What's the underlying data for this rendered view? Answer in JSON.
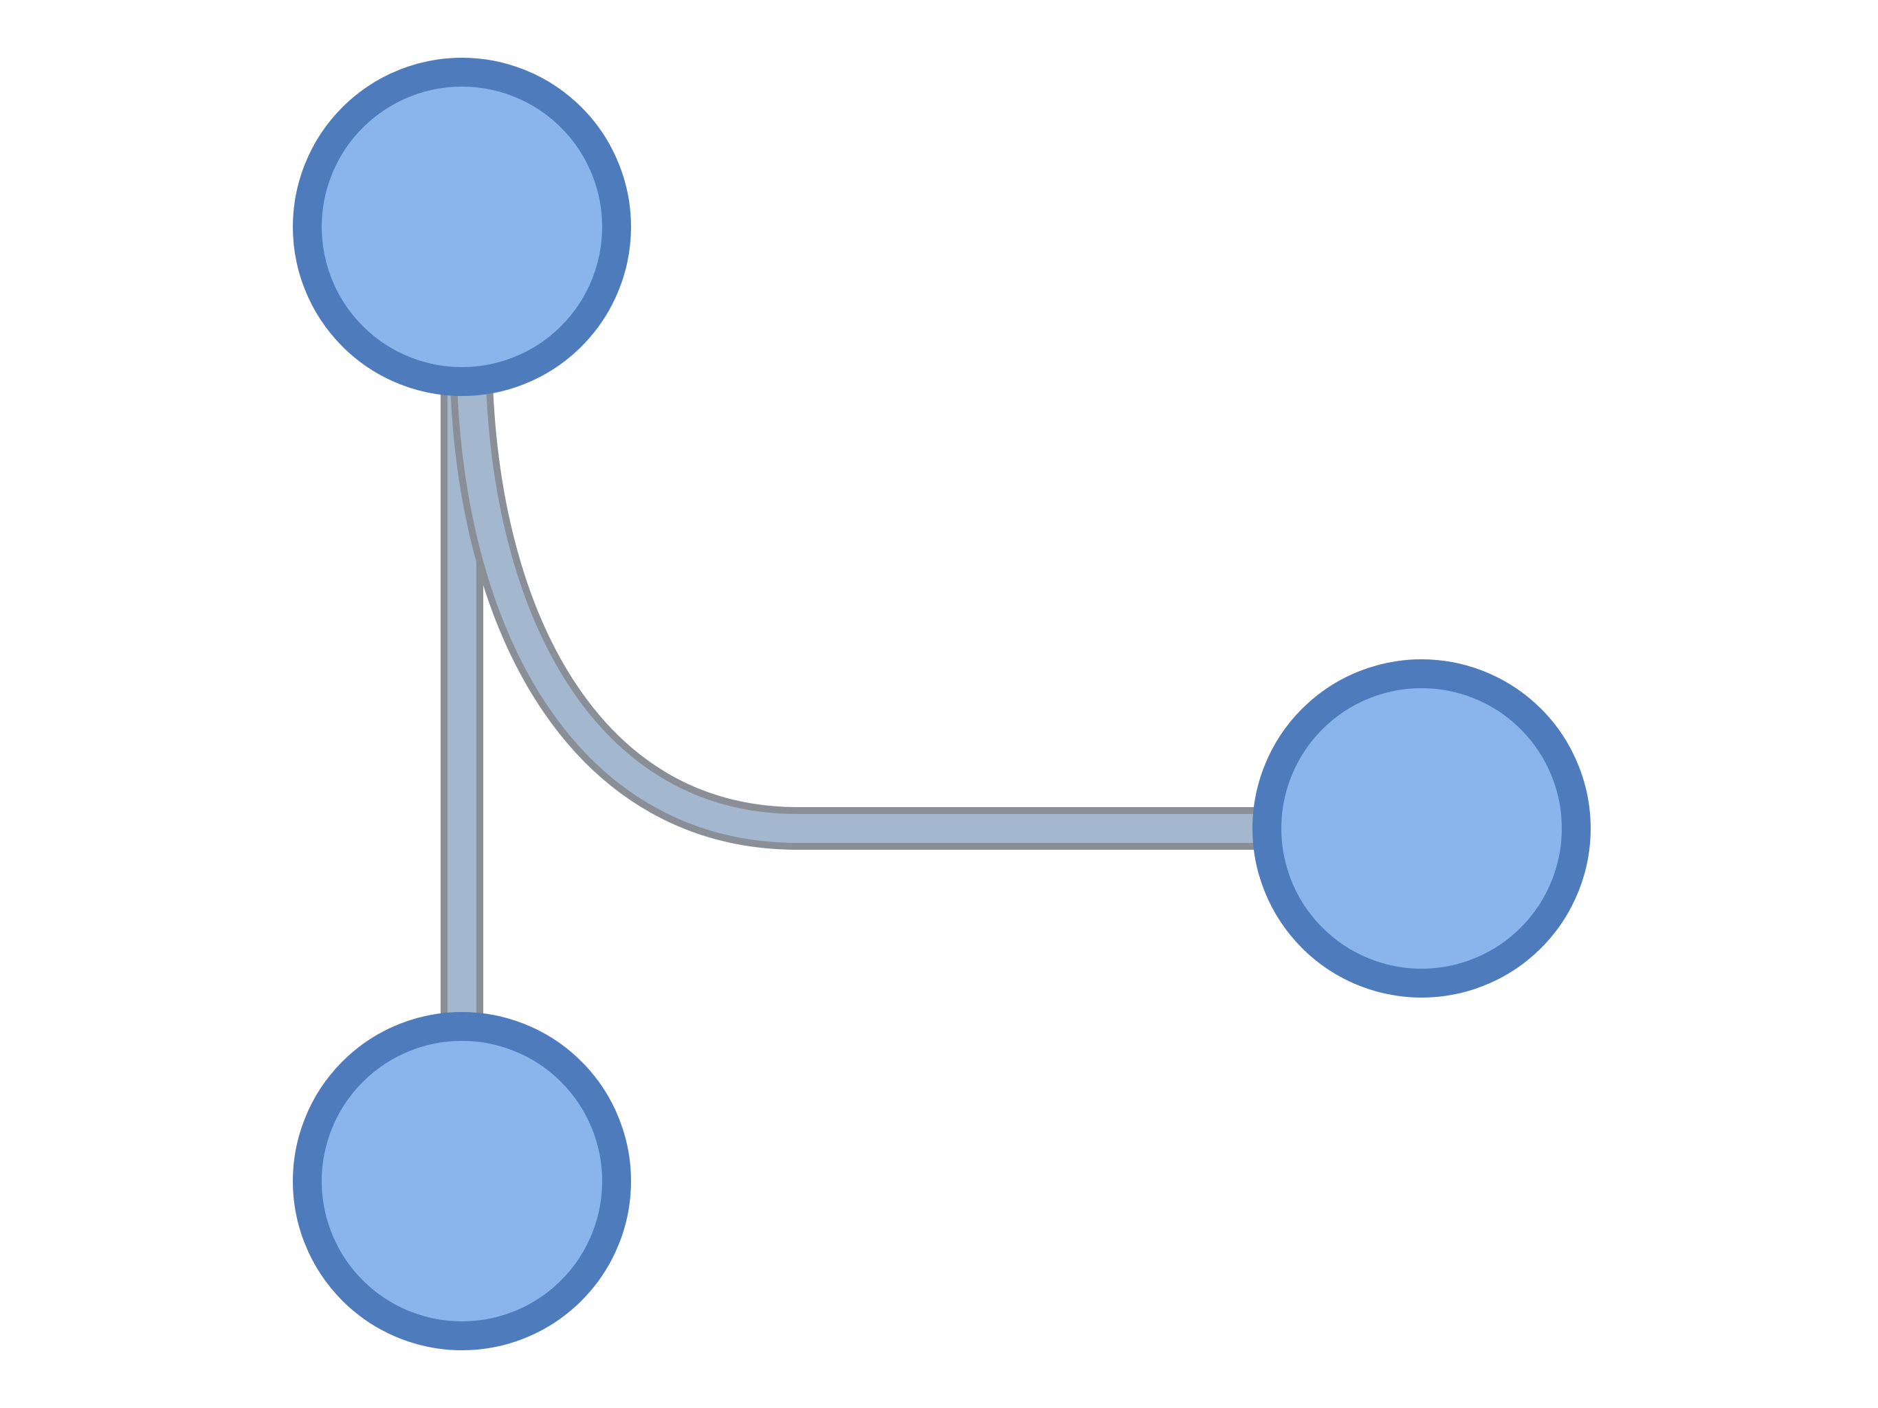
{
  "diagram": {
    "kind": "node-link icon",
    "nodes": [
      {
        "id": "node-top"
      },
      {
        "id": "node-right"
      },
      {
        "id": "node-bottom"
      }
    ],
    "edges": [
      {
        "id": "edge-top-bottom",
        "from": "node-top",
        "to": "node-bottom",
        "shape": "straight"
      },
      {
        "id": "edge-top-right",
        "from": "node-top",
        "to": "node-right",
        "shape": "curved"
      }
    ],
    "colors": {
      "node_fill": "#8ab4ec",
      "node_stroke": "#4e7bbb",
      "edge_fill": "#a3b7cf",
      "edge_outline": "#8a8f97",
      "background": "#ffffff"
    }
  }
}
